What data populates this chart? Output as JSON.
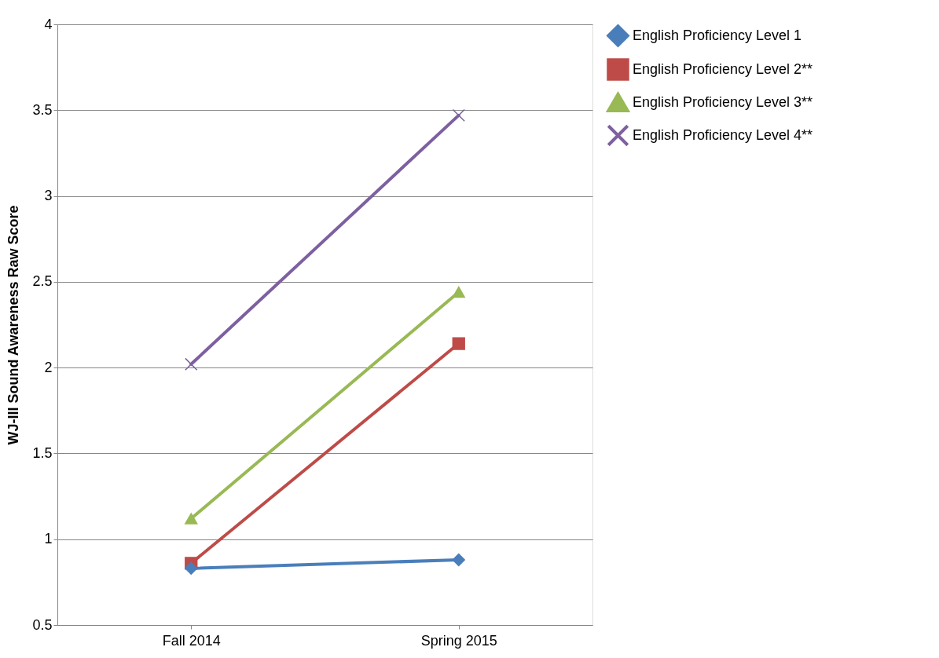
{
  "chart_data": {
    "type": "line",
    "ylabel": "WJ-III Sound Awareness Raw Score",
    "categories": [
      "Fall 2014",
      "Spring 2015"
    ],
    "series": [
      {
        "name": "English Proficiency Level 1",
        "color": "#4a7ebb",
        "marker": "diamond",
        "values": [
          0.83,
          0.88
        ]
      },
      {
        "name": "English Proficiency Level 2**",
        "color": "#be4b48",
        "marker": "square",
        "values": [
          0.86,
          2.14
        ]
      },
      {
        "name": "English Proficiency Level 3**",
        "color": "#98b954",
        "marker": "triangle",
        "values": [
          1.12,
          2.44
        ]
      },
      {
        "name": "English Proficiency Level 4**",
        "color": "#7d60a0",
        "marker": "cross",
        "values": [
          2.02,
          3.47
        ]
      }
    ],
    "ylim": [
      0.5,
      4
    ],
    "yticks": [
      0.5,
      1,
      1.5,
      2,
      2.5,
      3,
      3.5,
      4
    ],
    "grid": "y",
    "legend": "right",
    "line_style": "solid"
  }
}
